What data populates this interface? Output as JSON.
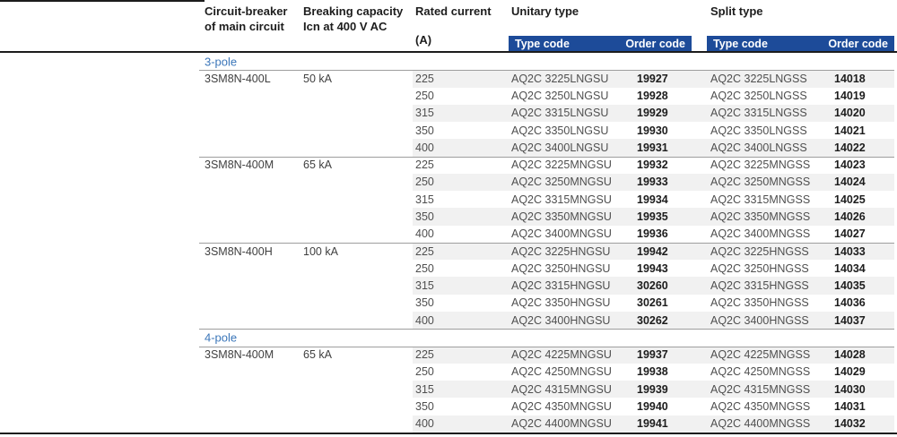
{
  "colors": {
    "bar_blue": "#1d4b99",
    "section_blue": "#3b76b9",
    "stripe_gray": "#f1f1f1"
  },
  "header": {
    "circuit_breaker_line1": "Circuit-breaker",
    "circuit_breaker_line2": "of main circuit",
    "breaking_line1": "Breaking capacity",
    "breaking_line2": "Icn at 400 V AC",
    "rated_line1": "Rated current",
    "rated_line2": "(A)",
    "unitary_group": "Unitary type",
    "split_group": "Split type",
    "type_code": "Type code",
    "order_code": "Order code"
  },
  "table": {
    "sections": [
      {
        "label": "3-pole",
        "groups": [
          {
            "breaker": "3SM8N-400L",
            "capacity": "50 kA",
            "rows": [
              {
                "current": "225",
                "unitary_type": "AQ2C 3225LNGSU",
                "unitary_order": "19927",
                "split_type": "AQ2C 3225LNGSS",
                "split_order": "14018"
              },
              {
                "current": "250",
                "unitary_type": "AQ2C 3250LNGSU",
                "unitary_order": "19928",
                "split_type": "AQ2C 3250LNGSS",
                "split_order": "14019"
              },
              {
                "current": "315",
                "unitary_type": "AQ2C 3315LNGSU",
                "unitary_order": "19929",
                "split_type": "AQ2C 3315LNGSS",
                "split_order": "14020"
              },
              {
                "current": "350",
                "unitary_type": "AQ2C 3350LNGSU",
                "unitary_order": "19930",
                "split_type": "AQ2C 3350LNGSS",
                "split_order": "14021"
              },
              {
                "current": "400",
                "unitary_type": "AQ2C 3400LNGSU",
                "unitary_order": "19931",
                "split_type": "AQ2C 3400LNGSS",
                "split_order": "14022"
              }
            ]
          },
          {
            "breaker": "3SM8N-400M",
            "capacity": "65 kA",
            "rows": [
              {
                "current": "225",
                "unitary_type": "AQ2C 3225MNGSU",
                "unitary_order": "19932",
                "split_type": "AQ2C 3225MNGSS",
                "split_order": "14023"
              },
              {
                "current": "250",
                "unitary_type": "AQ2C 3250MNGSU",
                "unitary_order": "19933",
                "split_type": "AQ2C 3250MNGSS",
                "split_order": "14024"
              },
              {
                "current": "315",
                "unitary_type": "AQ2C 3315MNGSU",
                "unitary_order": "19934",
                "split_type": "AQ2C 3315MNGSS",
                "split_order": "14025"
              },
              {
                "current": "350",
                "unitary_type": "AQ2C 3350MNGSU",
                "unitary_order": "19935",
                "split_type": "AQ2C 3350MNGSS",
                "split_order": "14026"
              },
              {
                "current": "400",
                "unitary_type": "AQ2C 3400MNGSU",
                "unitary_order": "19936",
                "split_type": "AQ2C 3400MNGSS",
                "split_order": "14027"
              }
            ]
          },
          {
            "breaker": "3SM8N-400H",
            "capacity": "100 kA",
            "rows": [
              {
                "current": "225",
                "unitary_type": "AQ2C 3225HNGSU",
                "unitary_order": "19942",
                "split_type": "AQ2C 3225HNGSS",
                "split_order": "14033"
              },
              {
                "current": "250",
                "unitary_type": "AQ2C 3250HNGSU",
                "unitary_order": "19943",
                "split_type": "AQ2C 3250HNGSS",
                "split_order": "14034"
              },
              {
                "current": "315",
                "unitary_type": "AQ2C 3315HNGSU",
                "unitary_order": "30260",
                "split_type": "AQ2C 3315HNGSS",
                "split_order": "14035"
              },
              {
                "current": "350",
                "unitary_type": "AQ2C 3350HNGSU",
                "unitary_order": "30261",
                "split_type": "AQ2C 3350HNGSS",
                "split_order": "14036"
              },
              {
                "current": "400",
                "unitary_type": "AQ2C 3400HNGSU",
                "unitary_order": "30262",
                "split_type": "AQ2C 3400HNGSS",
                "split_order": "14037"
              }
            ]
          }
        ]
      },
      {
        "label": "4-pole",
        "groups": [
          {
            "breaker": "3SM8N-400M",
            "capacity": "65 kA",
            "rows": [
              {
                "current": "225",
                "unitary_type": "AQ2C 4225MNGSU",
                "unitary_order": "19937",
                "split_type": "AQ2C 4225MNGSS",
                "split_order": "14028"
              },
              {
                "current": "250",
                "unitary_type": "AQ2C 4250MNGSU",
                "unitary_order": "19938",
                "split_type": "AQ2C 4250MNGSS",
                "split_order": "14029"
              },
              {
                "current": "315",
                "unitary_type": "AQ2C 4315MNGSU",
                "unitary_order": "19939",
                "split_type": "AQ2C 4315MNGSS",
                "split_order": "14030"
              },
              {
                "current": "350",
                "unitary_type": "AQ2C 4350MNGSU",
                "unitary_order": "19940",
                "split_type": "AQ2C 4350MNGSS",
                "split_order": "14031"
              },
              {
                "current": "400",
                "unitary_type": "AQ2C 4400MNGSU",
                "unitary_order": "19941",
                "split_type": "AQ2C 4400MNGSS",
                "split_order": "14032"
              }
            ]
          }
        ]
      }
    ]
  }
}
